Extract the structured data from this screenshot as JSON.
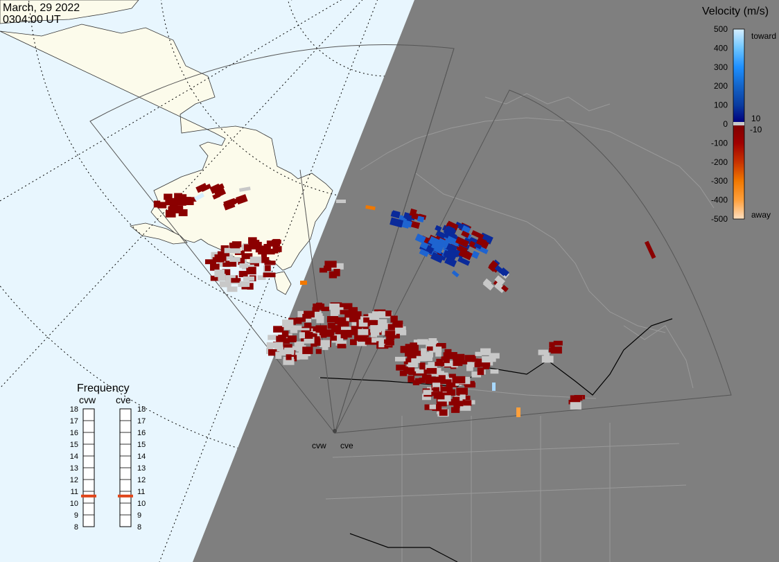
{
  "header": {
    "date": "March, 29 2022",
    "time": "0304:00 UT"
  },
  "colors": {
    "ocean_day": "#e8f6fe",
    "land_day": "#fcfbeb",
    "night": "#7f7f7f",
    "night_border": "#9a9a9a",
    "ground_scatter": "#c8c8c8",
    "frequency_marker": "#e0451a"
  },
  "colorbar": {
    "title": "Velocity (m/s)",
    "ticks": [
      "500",
      "400",
      "300",
      "200",
      "100",
      "0",
      "-100",
      "-200",
      "-300",
      "-400",
      "-500"
    ],
    "tick_values": [
      500,
      400,
      300,
      200,
      100,
      0,
      -100,
      -200,
      -300,
      -400,
      -500
    ],
    "label_toward": "toward",
    "label_away": "away",
    "label_pos_threshold": "10",
    "label_neg_threshold": "-10",
    "stops": [
      {
        "value": 500,
        "color": "#d6efff"
      },
      {
        "value": 400,
        "color": "#6ec6ff"
      },
      {
        "value": 300,
        "color": "#1e90ff"
      },
      {
        "value": 200,
        "color": "#1464c8"
      },
      {
        "value": 100,
        "color": "#0a3ca0"
      },
      {
        "value": 10,
        "color": "#000080"
      },
      {
        "value": -10,
        "color": "#800000"
      },
      {
        "value": -100,
        "color": "#a00000"
      },
      {
        "value": -200,
        "color": "#c83200"
      },
      {
        "value": -300,
        "color": "#f07800"
      },
      {
        "value": -400,
        "color": "#ffa03c"
      },
      {
        "value": -500,
        "color": "#ffe0c0"
      }
    ]
  },
  "radars": [
    {
      "id": "cvw",
      "label": "cvw"
    },
    {
      "id": "cve",
      "label": "cve"
    }
  ],
  "frequency": {
    "title": "Frequency",
    "unit_labels": [
      "18",
      "17",
      "16",
      "15",
      "14",
      "13",
      "12",
      "11",
      "10",
      "9",
      "8"
    ],
    "range_mhz": [
      8,
      18
    ],
    "channels": [
      {
        "label": "cvw",
        "value_mhz": 10.6
      },
      {
        "label": "cve",
        "value_mhz": 10.6
      }
    ]
  }
}
